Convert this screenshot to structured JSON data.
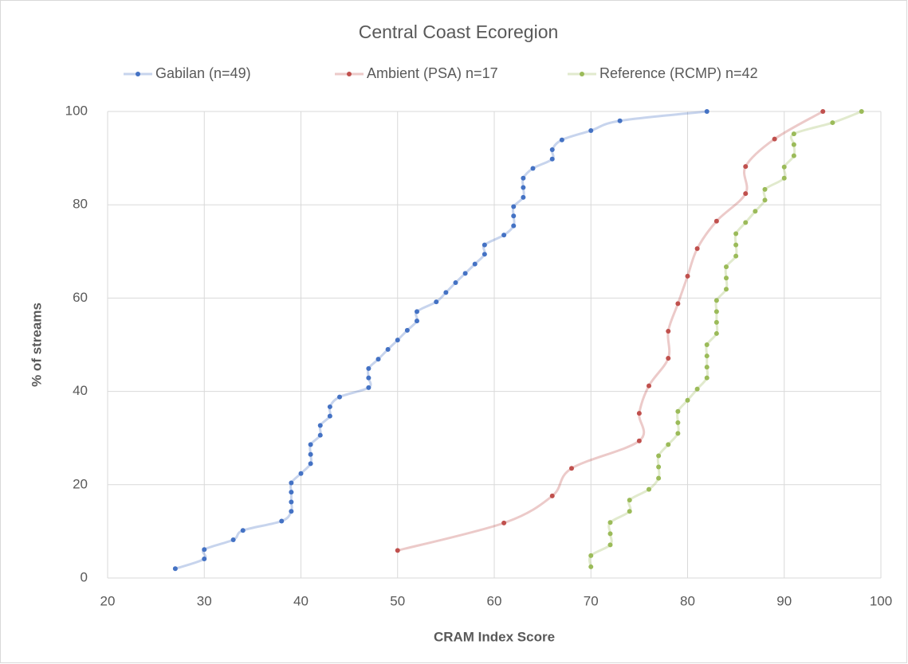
{
  "chart_data": {
    "type": "line",
    "title": "Central Coast Ecoregion",
    "x_label": "CRAM Index Score",
    "y_label": "% of streams",
    "xlim": [
      20,
      100
    ],
    "xticks": [
      20,
      30,
      40,
      50,
      60,
      70,
      80,
      90,
      100
    ],
    "ylim": [
      0,
      100
    ],
    "yticks": [
      0,
      20,
      40,
      60,
      80,
      100
    ],
    "grid": true,
    "legend": "top",
    "smooth": true,
    "series": [
      {
        "name": "Gabilan (n=49)",
        "color": "#4472c4",
        "x": [
          27,
          30,
          30,
          33,
          34,
          38,
          39,
          39,
          39,
          39,
          40,
          41,
          41,
          41,
          42,
          42,
          43,
          43,
          44,
          47,
          47,
          47,
          48,
          49,
          50,
          51,
          52,
          52,
          54,
          55,
          56,
          57,
          58,
          59,
          59,
          61,
          62,
          62,
          62,
          63,
          63,
          63,
          64,
          66,
          66,
          67,
          70,
          73,
          82
        ],
        "values": [
          2.0,
          4.1,
          6.1,
          8.2,
          10.2,
          12.2,
          14.3,
          16.3,
          18.4,
          20.4,
          22.4,
          24.5,
          26.5,
          28.6,
          30.6,
          32.7,
          34.7,
          36.7,
          38.8,
          40.8,
          42.9,
          44.9,
          46.9,
          49.0,
          51.0,
          53.1,
          55.1,
          57.1,
          59.2,
          61.2,
          63.3,
          65.3,
          67.3,
          69.4,
          71.4,
          73.5,
          75.5,
          77.6,
          79.6,
          81.6,
          83.7,
          85.7,
          87.8,
          89.8,
          91.8,
          93.9,
          95.9,
          98.0,
          100
        ]
      },
      {
        "name": "Ambient (PSA) n=17",
        "color": "#c0504d",
        "x": [
          50,
          61,
          66,
          68,
          75,
          75,
          76,
          78,
          78,
          79,
          80,
          81,
          83,
          86,
          86,
          89,
          94
        ],
        "values": [
          5.9,
          11.8,
          17.6,
          23.5,
          29.4,
          35.3,
          41.2,
          47.1,
          52.9,
          58.8,
          64.7,
          70.6,
          76.5,
          82.4,
          88.2,
          94.1,
          100
        ]
      },
      {
        "name": "Reference (RCMP) n=42",
        "color": "#9bbb59",
        "x": [
          70,
          70,
          72,
          72,
          72,
          74,
          74,
          76,
          77,
          77,
          77,
          78,
          79,
          79,
          79,
          80,
          81,
          82,
          82,
          82,
          82,
          83,
          83,
          83,
          83,
          84,
          84,
          84,
          85,
          85,
          85,
          86,
          87,
          88,
          88,
          90,
          90,
          91,
          91,
          91,
          95,
          98
        ],
        "values": [
          2.4,
          4.8,
          7.1,
          9.5,
          11.9,
          14.3,
          16.7,
          19.0,
          21.4,
          23.8,
          26.2,
          28.6,
          31.0,
          33.3,
          35.7,
          38.1,
          40.5,
          42.9,
          45.2,
          47.6,
          50.0,
          52.4,
          54.8,
          57.1,
          59.5,
          61.9,
          64.3,
          66.7,
          69.0,
          71.4,
          73.8,
          76.2,
          78.6,
          81.0,
          83.3,
          85.7,
          88.1,
          90.5,
          92.9,
          95.2,
          97.6,
          100
        ]
      }
    ]
  }
}
